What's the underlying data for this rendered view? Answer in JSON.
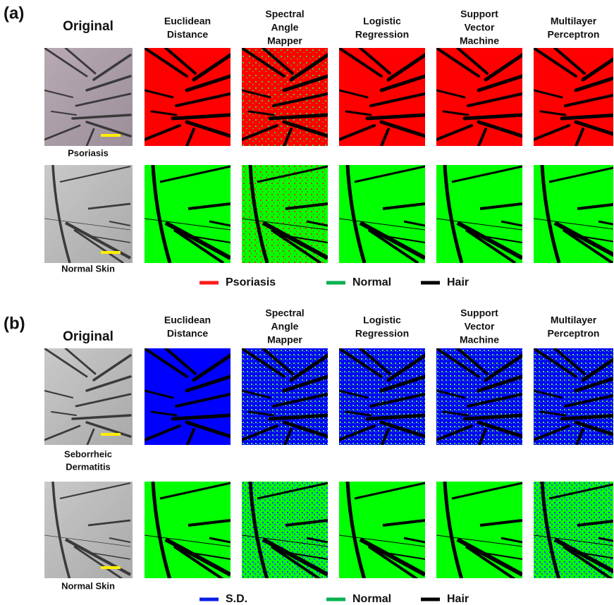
{
  "panels": [
    {
      "label": "(a)",
      "original_header": "Original",
      "methods": [
        [
          "Euclidean",
          "Distance"
        ],
        [
          "Spectral",
          "Angle",
          "Mapper"
        ],
        [
          "Logistic",
          "Regression"
        ],
        [
          "Support",
          "Vector",
          "Machine"
        ],
        [
          "Multilayer",
          "Perceptron"
        ]
      ],
      "rows": [
        {
          "label": [
            "Psoriasis"
          ]
        },
        {
          "label": [
            "Normal Skin"
          ]
        }
      ],
      "legend": [
        {
          "name": "Psoriasis",
          "color": "#ff1a1a"
        },
        {
          "name": "Normal",
          "color": "#00b050"
        },
        {
          "name": "Hair",
          "color": "#000000"
        }
      ]
    },
    {
      "label": "(b)",
      "original_header": "Original",
      "methods": [
        [
          "Euclidean",
          "Distance"
        ],
        [
          "Spectral",
          "Angle",
          "Mapper"
        ],
        [
          "Logistic",
          "Regression"
        ],
        [
          "Support",
          "Vector",
          "Machine"
        ],
        [
          "Multilayer",
          "Perceptron"
        ]
      ],
      "rows": [
        {
          "label": [
            "Seborrheic",
            "Dermatitis"
          ]
        },
        {
          "label": [
            "Normal Skin"
          ]
        }
      ],
      "legend": [
        {
          "name": "S.D.",
          "color": "#0a1ee8"
        },
        {
          "name": "Normal",
          "color": "#00b050"
        },
        {
          "name": "Hair",
          "color": "#000000"
        }
      ]
    }
  ]
}
